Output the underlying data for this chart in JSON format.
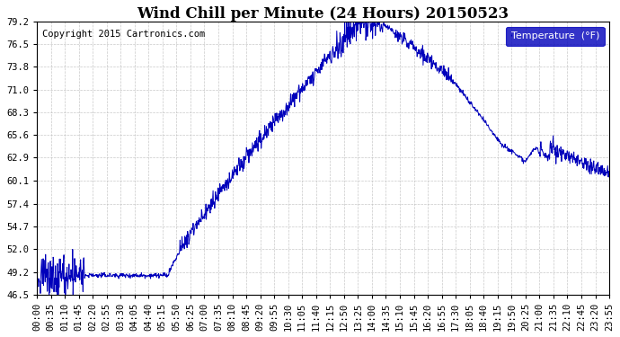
{
  "title": "Wind Chill per Minute (24 Hours) 20150523",
  "copyright": "Copyright 2015 Cartronics.com",
  "legend_label": "Temperature  (°F)",
  "line_color": "#0000bb",
  "background_color": "#ffffff",
  "grid_color": "#bbbbbb",
  "ylim": [
    46.5,
    79.2
  ],
  "yticks": [
    46.5,
    49.2,
    52.0,
    54.7,
    57.4,
    60.1,
    62.9,
    65.6,
    68.3,
    71.0,
    73.8,
    76.5,
    79.2
  ],
  "xtick_labels": [
    "00:00",
    "00:35",
    "01:10",
    "01:45",
    "02:20",
    "02:55",
    "03:30",
    "04:05",
    "04:40",
    "05:15",
    "05:50",
    "06:25",
    "07:00",
    "07:35",
    "08:10",
    "08:45",
    "09:20",
    "09:55",
    "10:30",
    "11:05",
    "11:40",
    "12:15",
    "12:50",
    "13:25",
    "14:00",
    "14:35",
    "15:10",
    "15:45",
    "16:20",
    "16:55",
    "17:30",
    "18:05",
    "18:40",
    "19:15",
    "19:50",
    "20:25",
    "21:00",
    "21:35",
    "22:10",
    "22:45",
    "23:20",
    "23:55"
  ],
  "title_fontsize": 12,
  "copyright_fontsize": 7.5,
  "tick_fontsize": 7.5,
  "legend_fontsize": 8
}
